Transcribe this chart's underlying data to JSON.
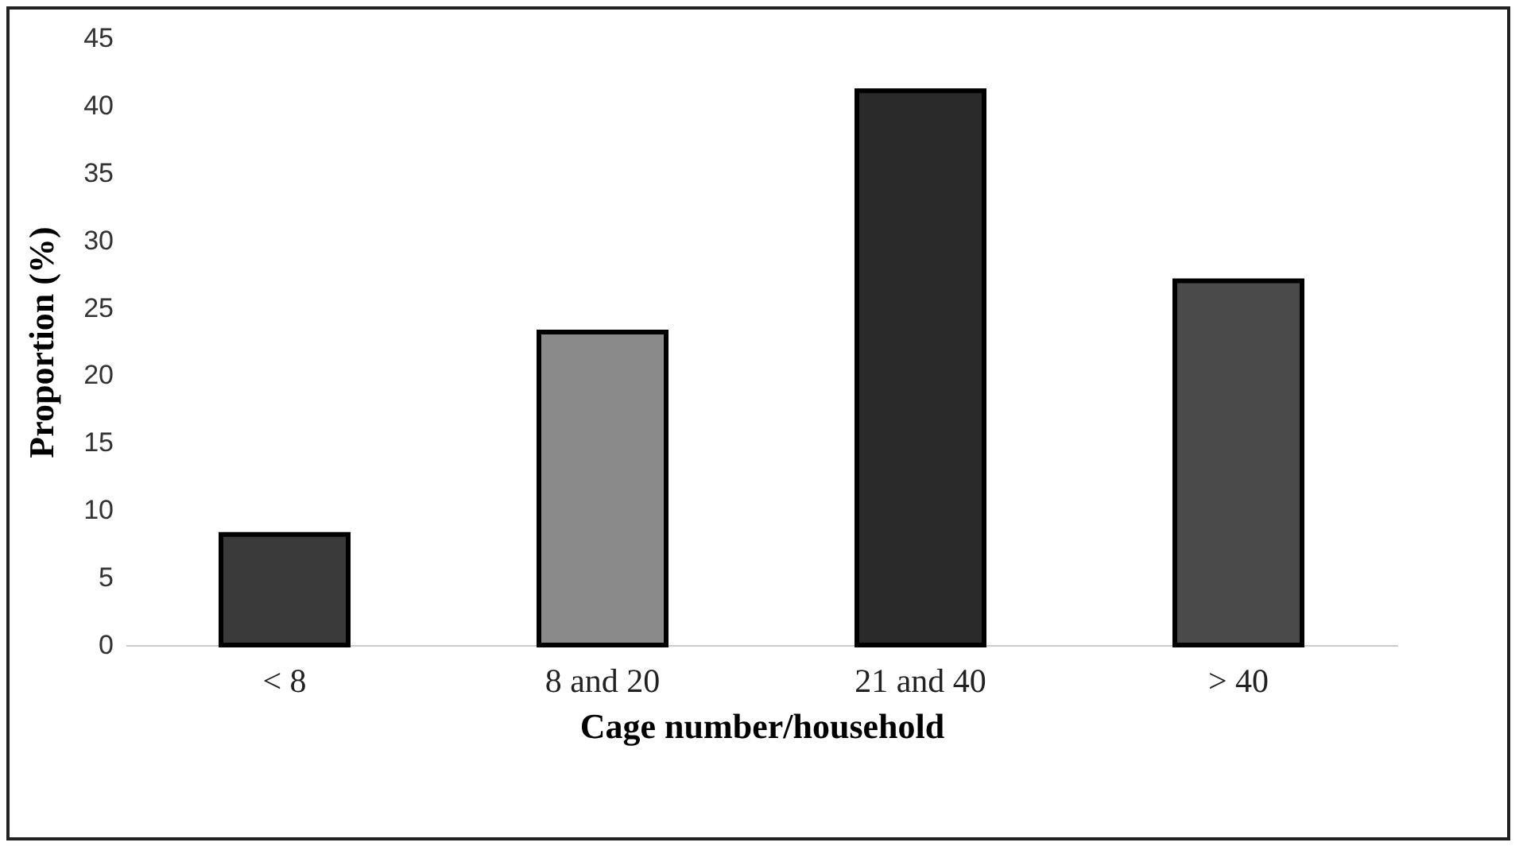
{
  "chart_data": {
    "type": "bar",
    "xlabel": "Cage number/household",
    "ylabel": "Proportion (%)",
    "categories": [
      "< 8",
      "8 and 20",
      "21 and 40",
      "> 40"
    ],
    "values": [
      8.2,
      23.2,
      41.1,
      27.0
    ],
    "colors": [
      "#3a3a3a",
      "#8a8a8a",
      "#2a2a2a",
      "#4a4a4a"
    ],
    "ylim": [
      0,
      45
    ],
    "yticks": [
      0,
      5,
      10,
      15,
      20,
      25,
      30,
      35,
      40,
      45
    ],
    "grid": false,
    "legend": false
  }
}
